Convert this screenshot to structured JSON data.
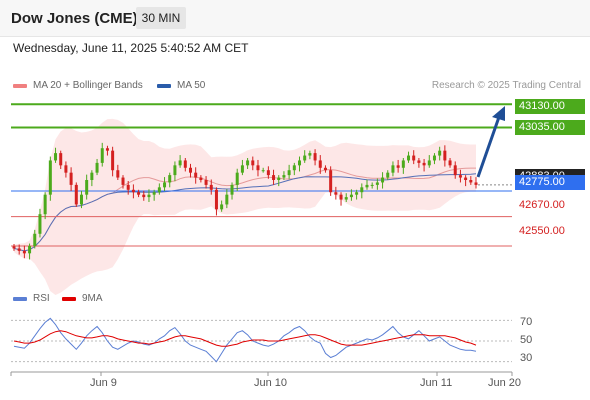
{
  "header": {
    "title": "Dow Jones (CME)",
    "timeframe": "30 MIN",
    "datetime": "Wednesday, June 11, 2025 5:40:52 AM CET"
  },
  "legend": {
    "ma20": {
      "label": "MA 20 + Bollinger Bands",
      "color": "#f08080"
    },
    "ma50": {
      "label": "MA 50",
      "color": "#2a5caa"
    },
    "credit": "Research © 2025 Trading Central"
  },
  "levels": {
    "resistance_2": "43130.00",
    "resistance_1": "43035.00",
    "current_hidden": "42883.00",
    "pivot": "42775.00",
    "support_1": "42670.00",
    "support_2": "42550.00"
  },
  "rsi_legend": {
    "rsi": "RSI",
    "rsi_color": "#5b7fd4",
    "ma": "9MA",
    "ma_color": "#e00000"
  },
  "rsi_ticks": [
    "70",
    "50",
    "30"
  ],
  "x_labels": [
    "Jun 9",
    "Jun 10",
    "Jun 11",
    "Jun 20"
  ],
  "colors": {
    "up": "#4caa1c",
    "down": "#d42020",
    "band": "#fde3e3",
    "resistance": "#4caa1c",
    "support": "#e06060",
    "pivot": "#2f6fef",
    "arrow": "#1f4e96"
  },
  "chart_data": [
    {
      "type": "candlestick",
      "title": "Dow Jones (CME) 30 MIN",
      "x_labels": [
        "Jun 9",
        "Jun 10",
        "Jun 11",
        "Jun 20"
      ],
      "horizontal_levels": [
        43130,
        43035,
        42775,
        42670,
        42550
      ],
      "ylim": [
        42460,
        43180
      ],
      "series": [
        {
          "name": "Price",
          "close": [
            42540,
            42530,
            42520,
            42550,
            42600,
            42680,
            42760,
            42900,
            42930,
            42880,
            42850,
            42800,
            42720,
            42760,
            42820,
            42850,
            42890,
            42950,
            42940,
            42860,
            42830,
            42800,
            42780,
            42770,
            42760,
            42750,
            42760,
            42770,
            42790,
            42810,
            42840,
            42880,
            42900,
            42870,
            42850,
            42830,
            42820,
            42800,
            42780,
            42700,
            42720,
            42760,
            42800,
            42850,
            42880,
            42900,
            42880,
            42860,
            42860,
            42840,
            42820,
            42830,
            42840,
            42860,
            42880,
            42900,
            42920,
            42930,
            42900,
            42870,
            42860,
            42770,
            42760,
            42740,
            42750,
            42760,
            42770,
            42790,
            42800,
            42800,
            42810,
            42830,
            42850,
            42880,
            42870,
            42900,
            42920,
            42900,
            42890,
            42880,
            42900,
            42920,
            42940,
            42900,
            42880,
            42840,
            42830,
            42820,
            42810,
            42800
          ]
        },
        {
          "name": "MA 20 + Bollinger Bands"
        },
        {
          "name": "MA 50"
        }
      ]
    },
    {
      "type": "line",
      "title": "RSI",
      "ylim": [
        20,
        80
      ],
      "series": [
        {
          "name": "RSI",
          "values": [
            45,
            44,
            43,
            48,
            55,
            62,
            68,
            72,
            66,
            58,
            52,
            47,
            42,
            48,
            55,
            60,
            64,
            58,
            50,
            44,
            42,
            45,
            48,
            50,
            49,
            47,
            46,
            48,
            52,
            55,
            60,
            63,
            57,
            50,
            46,
            44,
            42,
            40,
            35,
            30,
            38,
            46,
            52,
            58,
            60,
            56,
            50,
            48,
            46,
            45,
            47,
            50,
            55,
            58,
            62,
            64,
            60,
            54,
            50,
            48,
            38,
            34,
            36,
            40,
            44,
            46,
            48,
            50,
            52,
            51,
            53,
            56,
            60,
            64,
            58,
            54,
            52,
            56,
            60,
            55,
            50,
            52,
            54,
            50,
            46,
            44,
            42,
            41,
            41,
            40
          ]
        },
        {
          "name": "9MA",
          "values": [
            50,
            49,
            48,
            48,
            49,
            51,
            54,
            57,
            59,
            60,
            59,
            57,
            55,
            54,
            53,
            53,
            54,
            55,
            55,
            54,
            52,
            51,
            50,
            49,
            48,
            48,
            47,
            48,
            49,
            50,
            52,
            54,
            55,
            55,
            54,
            53,
            52,
            50,
            48,
            46,
            45,
            45,
            46,
            47,
            49,
            50,
            51,
            51,
            51,
            50,
            50,
            50,
            51,
            52,
            53,
            54,
            55,
            56,
            56,
            55,
            53,
            51,
            49,
            47,
            46,
            46,
            46,
            46,
            47,
            48,
            49,
            50,
            51,
            52,
            53,
            54,
            55,
            56,
            56,
            56,
            55,
            55,
            55,
            55,
            54,
            53,
            51,
            49,
            48,
            46
          ]
        }
      ]
    }
  ]
}
